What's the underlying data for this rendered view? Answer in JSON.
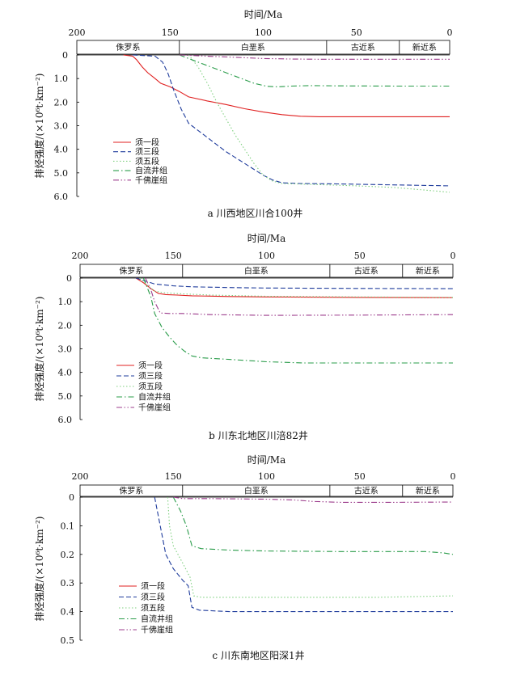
{
  "chart_data": [
    {
      "type": "line",
      "title": "a 川西地区川合100井",
      "xlabel": "时间/Ma",
      "ylabel": "排烃强度/(×10⁶t·km⁻²)",
      "xlim": [
        200,
        0
      ],
      "ylim": [
        0,
        6
      ],
      "x_ticks": [
        200,
        150,
        100,
        50,
        0
      ],
      "y_ticks": [
        0,
        1,
        2,
        3,
        4,
        5,
        6
      ],
      "y_tick_labels": [
        "0",
        "1.0",
        "2.0",
        "3.0",
        "4.0",
        "5.0",
        "6.0"
      ],
      "eras": [
        {
          "name": "侏罗系",
          "from": 200,
          "to": 145
        },
        {
          "name": "白垩系",
          "from": 145,
          "to": 66
        },
        {
          "name": "古近系",
          "from": 66,
          "to": 27
        },
        {
          "name": "新近系",
          "from": 27,
          "to": 0
        }
      ],
      "series": [
        {
          "name": "须一段",
          "color": "#e02020",
          "dash": "solid",
          "points": [
            [
              175,
              0
            ],
            [
              170,
              0.05
            ],
            [
              168,
              0.2
            ],
            [
              165,
              0.5
            ],
            [
              162,
              0.75
            ],
            [
              158,
              1.0
            ],
            [
              155,
              1.2
            ],
            [
              150,
              1.35
            ],
            [
              145,
              1.55
            ],
            [
              140,
              1.78
            ],
            [
              130,
              1.95
            ],
            [
              120,
              2.1
            ],
            [
              110,
              2.28
            ],
            [
              100,
              2.42
            ],
            [
              90,
              2.53
            ],
            [
              80,
              2.6
            ],
            [
              70,
              2.62
            ],
            [
              50,
              2.62
            ],
            [
              0,
              2.62
            ]
          ]
        },
        {
          "name": "须三段",
          "color": "#1f3c9c",
          "dash": "dash",
          "points": [
            [
              170,
              0
            ],
            [
              158,
              0.05
            ],
            [
              154,
              0.3
            ],
            [
              151,
              0.8
            ],
            [
              148,
              1.5
            ],
            [
              144,
              2.3
            ],
            [
              140,
              2.9
            ],
            [
              130,
              3.5
            ],
            [
              120,
              4.1
            ],
            [
              110,
              4.6
            ],
            [
              100,
              5.1
            ],
            [
              95,
              5.3
            ],
            [
              90,
              5.42
            ],
            [
              80,
              5.45
            ],
            [
              60,
              5.47
            ],
            [
              0,
              5.55
            ]
          ]
        },
        {
          "name": "须五段",
          "color": "#7fd07f",
          "dash": "dot",
          "points": [
            [
              140,
              0
            ],
            [
              135,
              0.5
            ],
            [
              130,
              1.2
            ],
            [
              125,
              2.0
            ],
            [
              120,
              2.7
            ],
            [
              115,
              3.4
            ],
            [
              110,
              4.0
            ],
            [
              105,
              4.6
            ],
            [
              100,
              5.1
            ],
            [
              95,
              5.35
            ],
            [
              90,
              5.45
            ],
            [
              70,
              5.5
            ],
            [
              50,
              5.55
            ],
            [
              30,
              5.62
            ],
            [
              15,
              5.72
            ],
            [
              0,
              5.82
            ]
          ]
        },
        {
          "name": "自流井组",
          "color": "#2a9c4a",
          "dash": "dashdot",
          "points": [
            [
              145,
              0
            ],
            [
              135,
              0.3
            ],
            [
              125,
              0.6
            ],
            [
              115,
              0.9
            ],
            [
              105,
              1.2
            ],
            [
              98,
              1.33
            ],
            [
              92,
              1.35
            ],
            [
              85,
              1.32
            ],
            [
              75,
              1.3
            ],
            [
              60,
              1.31
            ],
            [
              30,
              1.32
            ],
            [
              0,
              1.32
            ]
          ]
        },
        {
          "name": "千佛崖组",
          "color": "#9c3c8c",
          "dash": "dashdotdot",
          "points": [
            [
              145,
              0
            ],
            [
              130,
              0.05
            ],
            [
              115,
              0.1
            ],
            [
              100,
              0.15
            ],
            [
              85,
              0.17
            ],
            [
              70,
              0.18
            ],
            [
              50,
              0.18
            ],
            [
              0,
              0.18
            ]
          ]
        }
      ]
    },
    {
      "type": "line",
      "title": "b 川东北地区川涪82井",
      "xlabel": "时间/Ma",
      "ylabel": "排烃强度/(×10⁶t·km⁻²)",
      "xlim": [
        200,
        0
      ],
      "ylim": [
        0,
        6
      ],
      "x_ticks": [
        200,
        150,
        100,
        50,
        0
      ],
      "y_ticks": [
        0,
        1,
        2,
        3,
        4,
        5,
        6
      ],
      "y_tick_labels": [
        "0",
        "1.0",
        "2.0",
        "3.0",
        "4.0",
        "5.0",
        "6.0"
      ],
      "eras": [
        {
          "name": "侏罗系",
          "from": 200,
          "to": 145
        },
        {
          "name": "白垩系",
          "from": 145,
          "to": 66
        },
        {
          "name": "古近系",
          "from": 66,
          "to": 27
        },
        {
          "name": "新近系",
          "from": 27,
          "to": 0
        }
      ],
      "series": [
        {
          "name": "须一段",
          "color": "#e02020",
          "dash": "solid",
          "points": [
            [
              170,
              0
            ],
            [
              166,
              0.2
            ],
            [
              162,
              0.45
            ],
            [
              158,
              0.65
            ],
            [
              154,
              0.7
            ],
            [
              148,
              0.72
            ],
            [
              140,
              0.75
            ],
            [
              120,
              0.78
            ],
            [
              100,
              0.8
            ],
            [
              50,
              0.82
            ],
            [
              0,
              0.83
            ]
          ]
        },
        {
          "name": "须三段",
          "color": "#1f3c9c",
          "dash": "dash",
          "points": [
            [
              170,
              0
            ],
            [
              166,
              0.1
            ],
            [
              160,
              0.25
            ],
            [
              150,
              0.33
            ],
            [
              140,
              0.37
            ],
            [
              120,
              0.4
            ],
            [
              100,
              0.42
            ],
            [
              50,
              0.44
            ],
            [
              0,
              0.45
            ]
          ]
        },
        {
          "name": "须五段",
          "color": "#7fd07f",
          "dash": "dot",
          "points": [
            [
              168,
              0
            ],
            [
              164,
              0.3
            ],
            [
              160,
              0.55
            ],
            [
              155,
              0.62
            ],
            [
              145,
              0.67
            ],
            [
              130,
              0.72
            ],
            [
              100,
              0.77
            ],
            [
              50,
              0.8
            ],
            [
              0,
              0.82
            ]
          ]
        },
        {
          "name": "自流井组",
          "color": "#2a9c4a",
          "dash": "dashdot",
          "points": [
            [
              166,
              0
            ],
            [
              162,
              0.8
            ],
            [
              160,
              1.5
            ],
            [
              156,
              2.1
            ],
            [
              152,
              2.5
            ],
            [
              148,
              2.85
            ],
            [
              144,
              3.1
            ],
            [
              140,
              3.3
            ],
            [
              135,
              3.38
            ],
            [
              120,
              3.45
            ],
            [
              100,
              3.55
            ],
            [
              80,
              3.6
            ],
            [
              50,
              3.6
            ],
            [
              0,
              3.6
            ]
          ]
        },
        {
          "name": "千佛崖组",
          "color": "#9c3c8c",
          "dash": "dashdotdot",
          "points": [
            [
              165,
              0
            ],
            [
              162,
              0.5
            ],
            [
              160,
              1.0
            ],
            [
              157,
              1.48
            ],
            [
              152,
              1.5
            ],
            [
              145,
              1.5
            ],
            [
              130,
              1.55
            ],
            [
              100,
              1.58
            ],
            [
              50,
              1.57
            ],
            [
              0,
              1.55
            ]
          ]
        }
      ]
    },
    {
      "type": "line",
      "title": "c 川东南地区阳深1井",
      "xlabel": "时间/Ma",
      "ylabel": "排烃强度/(×10⁶t·km⁻²)",
      "xlim": [
        200,
        0
      ],
      "ylim": [
        0,
        0.5
      ],
      "x_ticks": [
        200,
        150,
        100,
        50,
        0
      ],
      "y_ticks": [
        0,
        0.1,
        0.2,
        0.3,
        0.4,
        0.5
      ],
      "y_tick_labels": [
        "0",
        "0.1",
        "0.2",
        "0.3",
        "0.4",
        "0.5"
      ],
      "eras": [
        {
          "name": "侏罗系",
          "from": 200,
          "to": 145
        },
        {
          "name": "白垩系",
          "from": 145,
          "to": 66
        },
        {
          "name": "古近系",
          "from": 66,
          "to": 27
        },
        {
          "name": "新近系",
          "from": 27,
          "to": 0
        }
      ],
      "series": [
        {
          "name": "须三段",
          "color": "#1f3c9c",
          "dash": "dash",
          "points": [
            [
              160,
              0
            ],
            [
              157,
              0.1
            ],
            [
              154,
              0.2
            ],
            [
              150,
              0.25
            ],
            [
              145,
              0.29
            ],
            [
              142,
              0.31
            ],
            [
              140,
              0.385
            ],
            [
              136,
              0.395
            ],
            [
              120,
              0.4
            ],
            [
              80,
              0.4
            ],
            [
              40,
              0.4
            ],
            [
              0,
              0.4
            ]
          ]
        },
        {
          "name": "须五段",
          "color": "#7fd07f",
          "dash": "dot",
          "points": [
            [
              153,
              0
            ],
            [
              152,
              0.1
            ],
            [
              150,
              0.17
            ],
            [
              145,
              0.23
            ],
            [
              141,
              0.28
            ],
            [
              139,
              0.345
            ],
            [
              135,
              0.35
            ],
            [
              110,
              0.35
            ],
            [
              80,
              0.35
            ],
            [
              40,
              0.35
            ],
            [
              0,
              0.345
            ]
          ]
        },
        {
          "name": "自流井组",
          "color": "#2a9c4a",
          "dash": "dashdot",
          "points": [
            [
              150,
              0
            ],
            [
              146,
              0.05
            ],
            [
              143,
              0.1
            ],
            [
              140,
              0.17
            ],
            [
              135,
              0.18
            ],
            [
              120,
              0.185
            ],
            [
              100,
              0.188
            ],
            [
              60,
              0.19
            ],
            [
              30,
              0.19
            ],
            [
              15,
              0.19
            ],
            [
              5,
              0.195
            ],
            [
              0,
              0.2
            ]
          ]
        },
        {
          "name": "千佛崖组",
          "color": "#9c3c8c",
          "dash": "dashdotdot",
          "points": [
            [
              150,
              0
            ],
            [
              145,
              0.005
            ],
            [
              130,
              0.005
            ],
            [
              100,
              0.007
            ],
            [
              85,
              0.01
            ],
            [
              75,
              0.015
            ],
            [
              60,
              0.018
            ],
            [
              30,
              0.018
            ],
            [
              0,
              0.017
            ]
          ]
        }
      ]
    }
  ]
}
